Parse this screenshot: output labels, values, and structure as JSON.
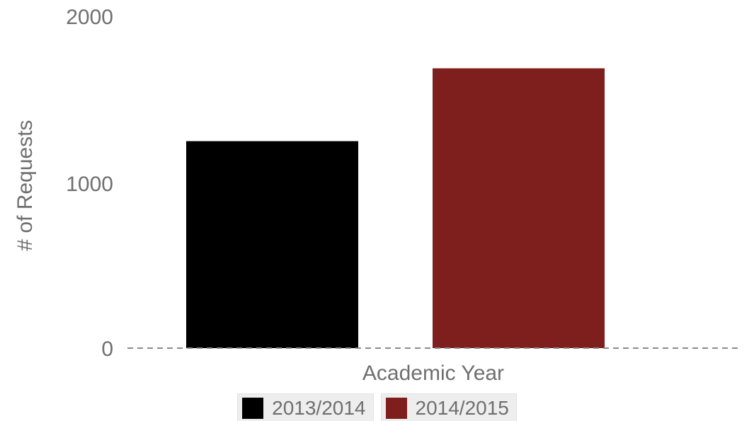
{
  "chart_data": {
    "type": "bar",
    "categories": [
      "Academic Year"
    ],
    "series": [
      {
        "name": "2013/2014",
        "values": [
          1250
        ],
        "color": "#000000"
      },
      {
        "name": "2014/2015",
        "values": [
          1690
        ],
        "color": "#7f1f1d"
      }
    ],
    "xlabel": "Academic Year",
    "ylabel": "# of Requests",
    "ylim": [
      0,
      2000
    ],
    "yticks": [
      "0",
      "1000",
      "2000"
    ],
    "baseline_style": "dashed",
    "grid": false,
    "legend_position": "bottom"
  }
}
